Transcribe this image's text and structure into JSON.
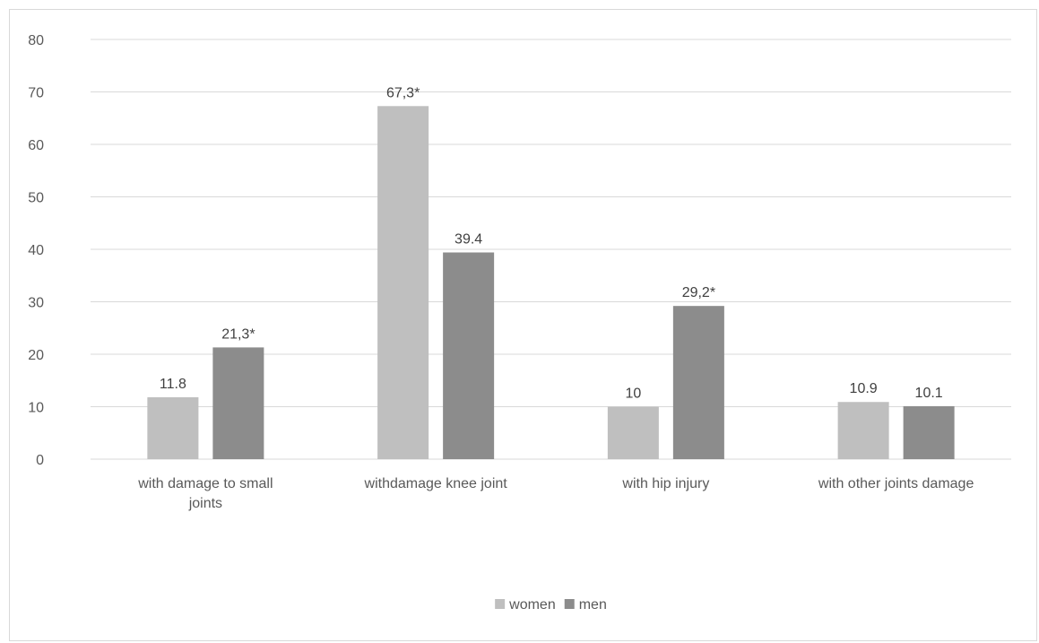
{
  "chart_data": {
    "type": "bar",
    "title": "",
    "xlabel": "",
    "ylabel": "",
    "ylim": [
      0,
      80
    ],
    "yticks": [
      0,
      10,
      20,
      30,
      40,
      50,
      60,
      70,
      80
    ],
    "grid": true,
    "legend_position": "bottom",
    "categories": [
      [
        "with damage to small",
        "joints"
      ],
      [
        "withdamage knee joint"
      ],
      [
        "with hip injury"
      ],
      [
        "with other joints damage"
      ]
    ],
    "series": [
      {
        "name": "women",
        "color": "#bfbfbf",
        "values": [
          11.8,
          67.3,
          10,
          10.9
        ],
        "labels": [
          "11.8",
          "67,3*",
          "10",
          "10.9"
        ]
      },
      {
        "name": "men",
        "color": "#8c8c8c",
        "values": [
          21.3,
          39.4,
          29.2,
          10.1
        ],
        "labels": [
          "21,3*",
          "39.4",
          "29,2*",
          "10.1"
        ]
      }
    ]
  }
}
